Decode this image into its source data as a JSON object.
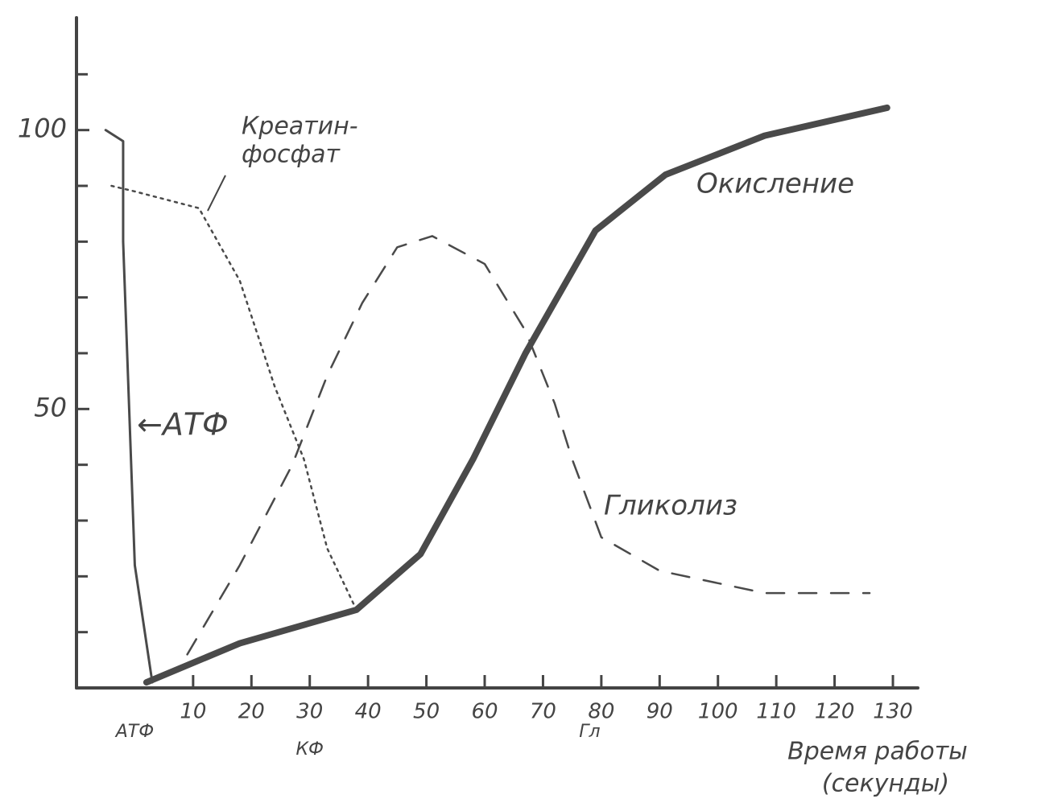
{
  "chart_data": {
    "type": "line",
    "xlim": [
      -10,
      134
    ],
    "ylim": [
      0,
      120
    ],
    "xticks": [
      10,
      20,
      30,
      40,
      50,
      60,
      70,
      80,
      90,
      100,
      110,
      120,
      130
    ],
    "yticks": [
      50,
      100
    ],
    "yminor_ticks": [
      10,
      20,
      30,
      40,
      60,
      70,
      80,
      90,
      110
    ],
    "color": "#4a4a4a",
    "series": [
      {
        "style": "solid",
        "width": 3,
        "x": [
          -5,
          -2,
          -2,
          -1,
          0,
          3
        ],
        "values": [
          100,
          98,
          80,
          51,
          22,
          1
        ]
      },
      {
        "style": "dotted",
        "width": 2.5,
        "x": [
          -4,
          0,
          11,
          18,
          24,
          29,
          33,
          38
        ],
        "values": [
          90,
          89,
          86,
          73,
          54,
          41,
          25,
          14
        ]
      },
      {
        "style": "dashed",
        "width": 2.5,
        "x": [
          9,
          18,
          27,
          33,
          39,
          45,
          51,
          60,
          67,
          72,
          75,
          80,
          90,
          108,
          126
        ],
        "values": [
          6,
          22,
          40,
          56,
          69,
          79,
          81,
          76,
          64,
          51,
          41,
          27,
          21,
          17,
          17
        ]
      },
      {
        "style": "solid",
        "width": 8,
        "x": [
          2,
          18,
          38,
          49,
          58,
          67,
          79,
          91,
          108,
          129
        ],
        "values": [
          1,
          8,
          14,
          24,
          41,
          60,
          82,
          92,
          99,
          104
        ]
      }
    ],
    "annotations": {
      "creatine": [
        "Креатин-",
        "фосфат"
      ],
      "oxidation": "Окисление",
      "glycolysis": "Гликолиз",
      "atp": "←АТФ"
    },
    "phase_labels": [
      {
        "x": 0,
        "label": "АТФ"
      },
      {
        "x": 30,
        "label": "КФ"
      },
      {
        "x": 78,
        "label": "Гл"
      }
    ],
    "xlabel": [
      "Время работы",
      "(секунды)"
    ]
  }
}
